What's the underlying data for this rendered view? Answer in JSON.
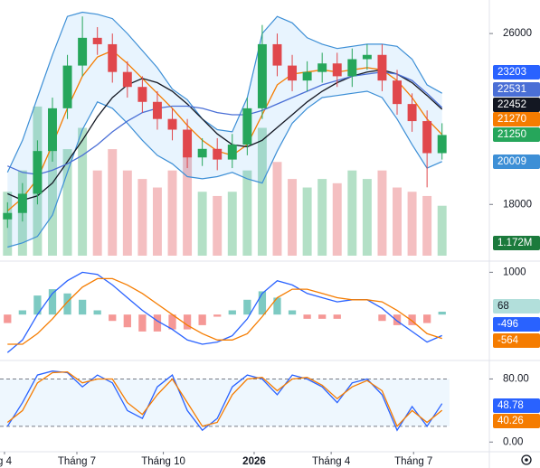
{
  "chart_data": [
    {
      "type": "candlestick",
      "categories": [
        null,
        null,
        null,
        null,
        null,
        null,
        null,
        null,
        null,
        null,
        null,
        null,
        null,
        null,
        null,
        null,
        null,
        null,
        null,
        null,
        null,
        null,
        null,
        null,
        null,
        null,
        null,
        null,
        null,
        null
      ],
      "open": [
        17300,
        17600,
        18500,
        20500,
        22500,
        24500,
        25800,
        25500,
        24200,
        23500,
        22800,
        22000,
        21500,
        20200,
        20600,
        20100,
        20800,
        22500,
        25500,
        24500,
        23800,
        24200,
        24600,
        24000,
        24800,
        25000,
        23800,
        22700,
        21900,
        20400
      ],
      "high": [
        18100,
        19000,
        21000,
        23000,
        25000,
        26800,
        26300,
        26000,
        24700,
        24000,
        23300,
        22500,
        22000,
        21100,
        21100,
        21300,
        23000,
        26400,
        26000,
        25000,
        24700,
        25100,
        25100,
        25300,
        25500,
        25500,
        24300,
        23200,
        22400,
        21800
      ],
      "low": [
        16900,
        17200,
        18000,
        20000,
        22000,
        24000,
        25000,
        23700,
        23000,
        22300,
        21500,
        21000,
        19700,
        19800,
        19600,
        19700,
        20300,
        22000,
        24000,
        23300,
        23300,
        23700,
        23500,
        23500,
        24300,
        23300,
        22200,
        21400,
        18800,
        20100
      ],
      "close": [
        17600,
        18500,
        20500,
        22500,
        24500,
        25800,
        25500,
        24200,
        23500,
        22800,
        22000,
        21500,
        20200,
        20600,
        20100,
        20800,
        22500,
        25500,
        24500,
        23800,
        24200,
        24600,
        24000,
        24800,
        25000,
        23800,
        22700,
        21900,
        20400,
        21250
      ],
      "up_color": "#26a65b",
      "down_color": "#e0474c",
      "bands": {
        "color": "#3d8fd6",
        "fill": "rgba(33,150,243,0.10)",
        "upper": [
          19500,
          21000,
          23000,
          25000,
          26800,
          27000,
          26900,
          26700,
          26000,
          25200,
          24400,
          23400,
          22900,
          22000,
          21500,
          21400,
          23000,
          26000,
          26800,
          26500,
          25800,
          25500,
          25300,
          25400,
          25500,
          25500,
          25400,
          24800,
          23600,
          23203
        ],
        "lower": [
          16000,
          16200,
          16500,
          17500,
          19500,
          21500,
          22800,
          22500,
          21800,
          21000,
          20300,
          19900,
          19300,
          19200,
          19300,
          19500,
          19200,
          19000,
          20500,
          21800,
          22500,
          23000,
          23100,
          23200,
          23300,
          23000,
          22000,
          20800,
          19700,
          20009
        ]
      },
      "overlays": [
        {
          "color": "#f57c00",
          "values": [
            17700,
            18300,
            19200,
            20800,
            22500,
            24000,
            24900,
            25200,
            24600,
            23900,
            23200,
            22500,
            21700,
            21000,
            20500,
            20300,
            20800,
            22200,
            23600,
            24100,
            24200,
            24300,
            24200,
            24300,
            24400,
            24300,
            23800,
            23000,
            22000,
            21270
          ]
        },
        {
          "color": "#131722",
          "values": [
            18500,
            18200,
            18400,
            19000,
            20000,
            21000,
            22100,
            23000,
            23600,
            23900,
            23700,
            23300,
            22700,
            22000,
            21300,
            20800,
            20700,
            21000,
            21600,
            22200,
            22800,
            23300,
            23700,
            24000,
            24200,
            24300,
            24100,
            23700,
            23100,
            22452
          ]
        },
        {
          "color": "#4a6fd6",
          "values": [
            19800,
            19500,
            19400,
            19600,
            19900,
            20300,
            20800,
            21400,
            21900,
            22300,
            22500,
            22600,
            22600,
            22500,
            22300,
            22200,
            22200,
            22400,
            22700,
            23000,
            23300,
            23600,
            23800,
            24000,
            24100,
            24200,
            24100,
            23800,
            23200,
            22531
          ]
        }
      ],
      "volume": {
        "values": [
          1.5,
          2,
          3.5,
          3,
          2.5,
          3,
          2,
          2.5,
          2,
          1.8,
          1.6,
          2,
          2.5,
          1.5,
          1.4,
          1.5,
          2,
          3,
          2.2,
          1.8,
          1.6,
          1.8,
          1.7,
          2,
          1.8,
          2,
          1.6,
          1.5,
          1.4,
          1.172
        ],
        "ylim": [
          0,
          6
        ],
        "label": "1.172M",
        "color": "#1b7a3c"
      },
      "ylim": [
        15600,
        27570
      ],
      "yticks": [
        18000,
        26000
      ]
    },
    {
      "type": "macd",
      "series": [
        {
          "color": "#2962ff",
          "values": [
            -900,
            -600,
            0,
            500,
            800,
            1000,
            950,
            700,
            400,
            100,
            -150,
            -350,
            -600,
            -700,
            -650,
            -500,
            -100,
            500,
            800,
            700,
            500,
            400,
            300,
            350,
            350,
            150,
            -150,
            -400,
            -650,
            -496
          ]
        },
        {
          "color": "#f57c00",
          "values": [
            -700,
            -700,
            -450,
            -100,
            300,
            650,
            850,
            850,
            700,
            500,
            250,
            0,
            -250,
            -450,
            -600,
            -600,
            -450,
            -50,
            400,
            600,
            600,
            500,
            400,
            350,
            350,
            300,
            100,
            -150,
            -450,
            -564
          ]
        }
      ],
      "histogram": {
        "up_color": "#26a69a",
        "down_color": "#ef5350",
        "values": [
          -200,
          100,
          450,
          600,
          500,
          350,
          100,
          -150,
          -300,
          -400,
          -400,
          -350,
          -350,
          -250,
          -50,
          100,
          350,
          550,
          400,
          100,
          -100,
          -100,
          -100,
          0,
          0,
          -150,
          -250,
          -250,
          -200,
          68
        ]
      },
      "ylim": [
        -1000,
        1200
      ],
      "yticks": [
        1000
      ]
    },
    {
      "type": "stochastic",
      "series": [
        {
          "color": "#2962ff",
          "values": [
            20,
            50,
            85,
            90,
            88,
            70,
            85,
            75,
            40,
            30,
            70,
            85,
            40,
            15,
            30,
            70,
            85,
            80,
            60,
            85,
            80,
            70,
            50,
            75,
            80,
            60,
            15,
            45,
            20,
            48.78
          ]
        },
        {
          "color": "#f57c00",
          "values": [
            25,
            40,
            75,
            88,
            89,
            75,
            80,
            80,
            50,
            35,
            60,
            80,
            50,
            20,
            25,
            60,
            80,
            82,
            65,
            80,
            82,
            72,
            55,
            70,
            78,
            65,
            20,
            40,
            25,
            40.26
          ]
        }
      ],
      "band": [
        20,
        80
      ],
      "ylim": [
        -10,
        100
      ],
      "yticks": [
        {
          "value": 80,
          "label": "80.00"
        },
        {
          "value": 0,
          "label": "0.00"
        }
      ],
      "xlim": [
        -0.5,
        29.5
      ],
      "xticks": [
        {
          "value": -0.2,
          "label": "g 4"
        },
        {
          "value": 4.63,
          "label": "Tháng 7"
        },
        {
          "value": 10.4,
          "label": "Tháng 10"
        },
        {
          "value": 16.46,
          "label": "2026"
        },
        {
          "value": 21.6,
          "label": "Tháng 4"
        },
        {
          "value": 27.1,
          "label": "Tháng 7"
        }
      ]
    }
  ]
}
